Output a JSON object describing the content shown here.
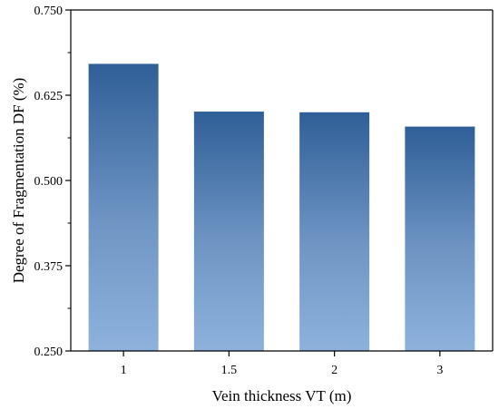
{
  "chart_data": {
    "type": "bar",
    "categories": [
      "1",
      "1.5",
      "2",
      "3"
    ],
    "values": [
      0.671,
      0.601,
      0.6,
      0.579
    ],
    "xlabel": "Vein thickness VT (m)",
    "ylabel": "Degree of Fragmentation DF (%)",
    "ylim": [
      0.25,
      0.75
    ],
    "yticks": [
      "0.250",
      "0.375",
      "0.500",
      "0.625",
      "0.750"
    ],
    "grid": false,
    "colors": {
      "bar_top": "#2f5f97",
      "bar_bottom": "#8db2dc",
      "axis": "#000000"
    }
  }
}
